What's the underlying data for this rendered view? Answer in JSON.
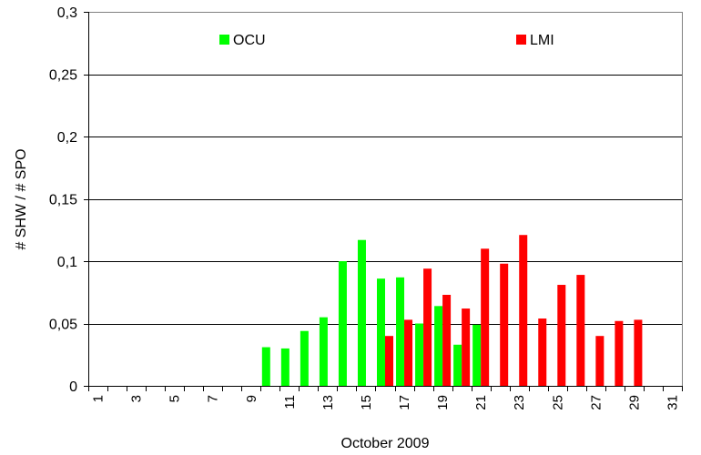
{
  "chart_data": {
    "type": "bar",
    "title": "",
    "xlabel": "October 2009",
    "ylabel": "# SHW / # SPO",
    "categories": [
      1,
      2,
      3,
      4,
      5,
      6,
      7,
      8,
      9,
      10,
      11,
      12,
      13,
      14,
      15,
      16,
      17,
      18,
      19,
      20,
      21,
      22,
      23,
      24,
      25,
      26,
      27,
      28,
      29,
      30,
      31
    ],
    "x_tick_labels": [
      "1",
      "3",
      "5",
      "7",
      "9",
      "11",
      "13",
      "15",
      "17",
      "19",
      "21",
      "23",
      "25",
      "27",
      "29",
      "31"
    ],
    "y_tick_labels": [
      "0",
      "0,05",
      "0,1",
      "0,15",
      "0,2",
      "0,25",
      "0,3"
    ],
    "ylim": [
      0,
      0.3
    ],
    "grid": true,
    "legend_placement": "top",
    "series": [
      {
        "name": "OCU",
        "color": "#00ff00",
        "values": [
          null,
          null,
          null,
          null,
          null,
          null,
          null,
          null,
          null,
          0.031,
          0.03,
          0.044,
          0.055,
          0.1,
          0.117,
          0.086,
          0.087,
          0.05,
          0.064,
          0.033,
          0.049,
          null,
          null,
          null,
          null,
          null,
          null,
          null,
          null,
          null,
          null
        ]
      },
      {
        "name": "LMI",
        "color": "#ff0000",
        "values": [
          null,
          null,
          null,
          null,
          null,
          null,
          null,
          null,
          null,
          null,
          null,
          null,
          null,
          null,
          null,
          0.04,
          0.053,
          0.094,
          0.073,
          0.062,
          0.11,
          0.098,
          0.121,
          0.054,
          0.081,
          0.089,
          0.04,
          0.052,
          0.053,
          null,
          null
        ]
      }
    ]
  }
}
